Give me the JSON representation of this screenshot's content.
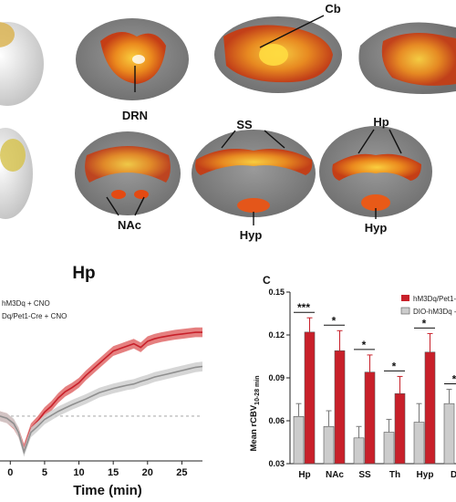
{
  "brain_labels": {
    "drn": "DRN",
    "cb": "Cb",
    "ss": "SS",
    "hp": "Hp",
    "nac": "NAc",
    "hyp_a": "Hyp",
    "hyp_b": "Hyp"
  },
  "panel_b": {
    "title": "Hp",
    "legend": [
      "hM3Dq + CNO",
      "Dq/Pet1-Cre + CNO"
    ],
    "xlabel": "Time (min)"
  },
  "panel_c": {
    "letter": "C",
    "ylabel_main": "Mean rCBV",
    "ylabel_sub": "10-28 min",
    "legend": [
      "hM3Dq/Pet1-",
      "DIO-hM3Dq -"
    ]
  },
  "colors": {
    "red": "#c8202a",
    "gray": "#b8b8b8",
    "red_band": "#e06a6a",
    "gray_band": "#cfcfcf"
  },
  "chart_data": [
    {
      "type": "line",
      "title": "Hp",
      "xlabel": "Time (min)",
      "ylabel": "",
      "x_ticks": [
        0,
        5,
        10,
        15,
        20,
        25
      ],
      "xlim": [
        -1.5,
        28
      ],
      "series": [
        {
          "name": "Dq/Pet1-Cre + CNO",
          "x": [
            -1.5,
            -0.5,
            0.5,
            1.2,
            2,
            3,
            4,
            5,
            6,
            7,
            8,
            9,
            10,
            11,
            12,
            13,
            14,
            15,
            16,
            17,
            18,
            19,
            20,
            21,
            22,
            23,
            24,
            25,
            26,
            27,
            28
          ],
          "y": [
            0.0,
            -0.005,
            -0.02,
            -0.04,
            -0.08,
            -0.03,
            -0.012,
            0.01,
            0.025,
            0.045,
            0.06,
            0.07,
            0.082,
            0.1,
            0.115,
            0.13,
            0.145,
            0.16,
            0.166,
            0.172,
            0.178,
            0.169,
            0.184,
            0.19,
            0.194,
            0.197,
            0.2,
            0.202,
            0.204,
            0.206,
            0.206
          ]
        },
        {
          "name": "hM3Dq + CNO",
          "x": [
            -1.5,
            -0.5,
            0.5,
            1.2,
            2,
            3,
            4,
            5,
            6,
            7,
            8,
            9,
            10,
            11,
            12,
            13,
            14,
            15,
            16,
            17,
            18,
            19,
            20,
            21,
            22,
            23,
            24,
            25,
            26,
            27,
            28
          ],
          "y": [
            0.0,
            -0.005,
            -0.018,
            -0.04,
            -0.088,
            -0.04,
            -0.025,
            -0.008,
            0.002,
            0.012,
            0.02,
            0.028,
            0.035,
            0.042,
            0.05,
            0.058,
            0.063,
            0.068,
            0.072,
            0.076,
            0.079,
            0.085,
            0.09,
            0.096,
            0.1,
            0.104,
            0.108,
            0.112,
            0.116,
            0.12,
            0.122
          ]
        }
      ]
    },
    {
      "type": "bar",
      "title": "",
      "ylabel": "Mean rCBV 10-28 min",
      "categories": [
        "Hp",
        "NAc",
        "SS",
        "Th",
        "Hyp",
        "DI"
      ],
      "ylim": [
        0.03,
        0.15
      ],
      "y_ticks": [
        0.03,
        0.06,
        0.09,
        0.12,
        0.15
      ],
      "series": [
        {
          "name": "hM3Dq/Pet1-",
          "values": [
            0.122,
            0.109,
            0.094,
            0.079,
            0.108,
            null
          ],
          "errors": [
            0.01,
            0.014,
            0.012,
            0.012,
            0.013,
            null
          ]
        },
        {
          "name": "DIO-hM3Dq -",
          "values": [
            0.063,
            0.056,
            0.048,
            0.052,
            0.059,
            0.072
          ],
          "errors": [
            0.009,
            0.011,
            0.008,
            0.009,
            0.013,
            0.01
          ]
        }
      ],
      "significance": [
        "***",
        "*",
        "*",
        "*",
        "*",
        "*"
      ]
    }
  ]
}
